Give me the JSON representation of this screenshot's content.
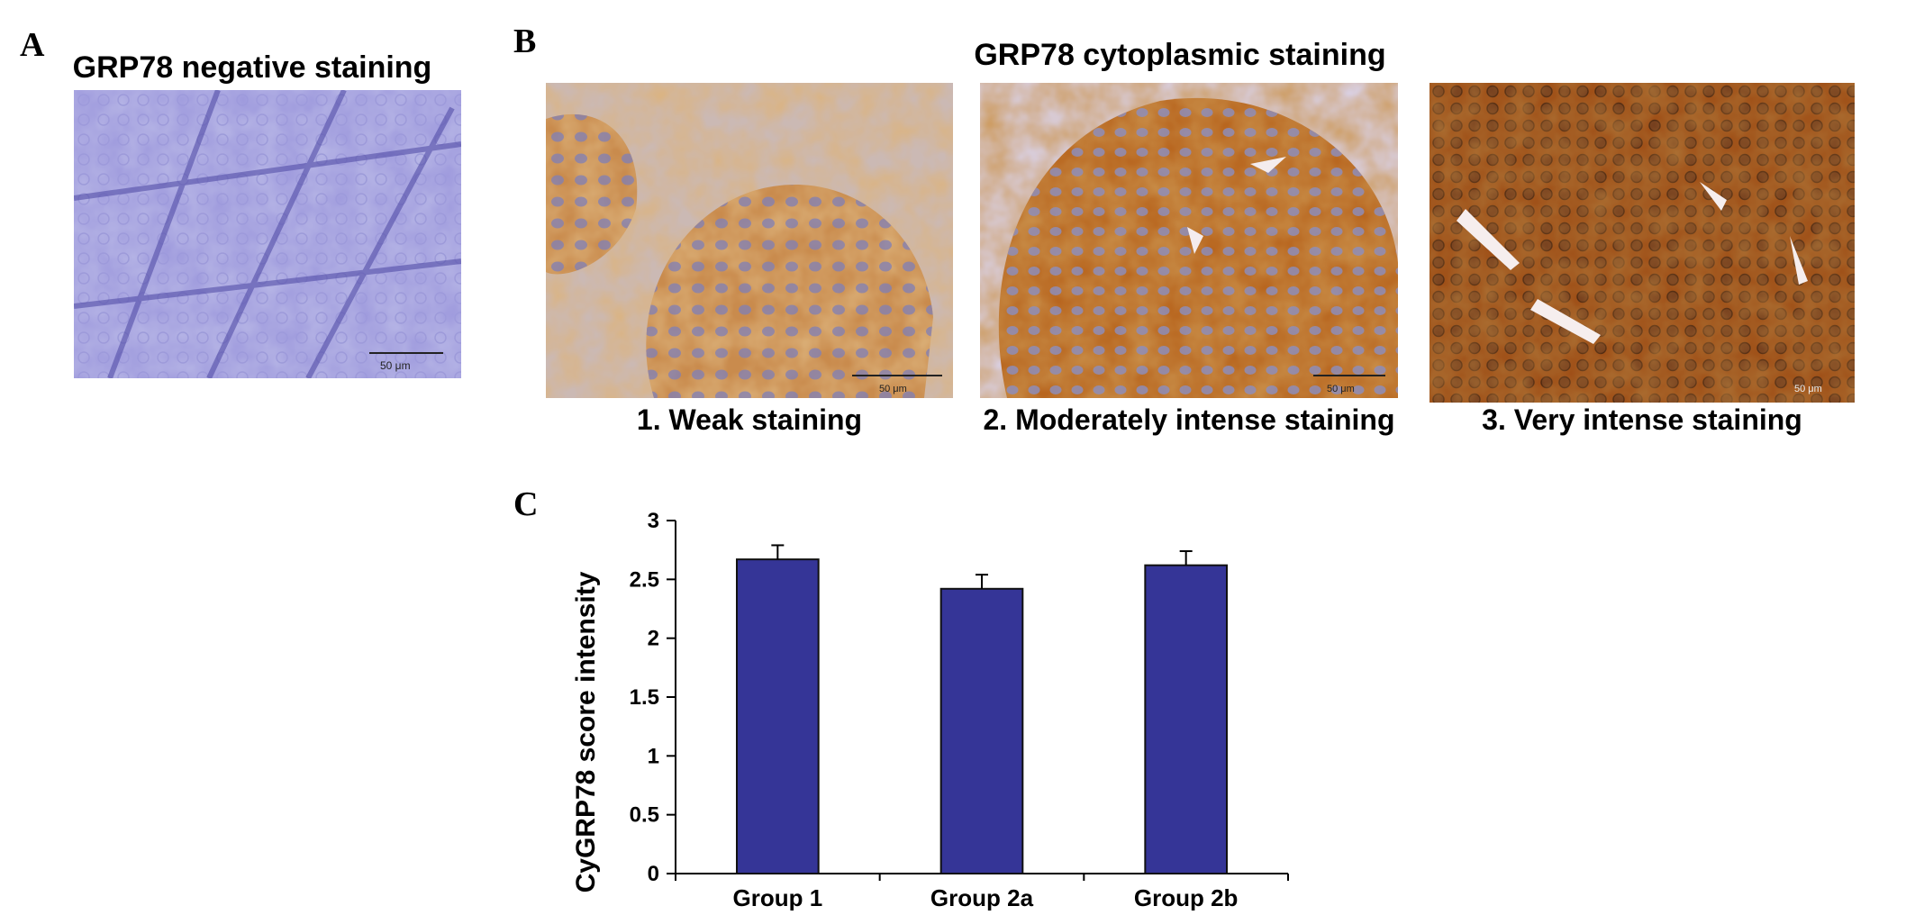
{
  "panels": {
    "a": {
      "letter": "A",
      "title": "GRP78 negative staining",
      "scale_bar": "50 μm"
    },
    "b": {
      "letter": "B",
      "title": "GRP78 cytoplasmic staining",
      "images": [
        {
          "caption": "1. Weak staining",
          "scale_bar": "50 μm"
        },
        {
          "caption": "2. Moderately intense staining",
          "scale_bar": "50 μm"
        },
        {
          "caption": "3. Very intense staining",
          "scale_bar": "50 μm"
        }
      ]
    },
    "c": {
      "letter": "C"
    }
  },
  "colors": {
    "hematoxylin": "#5b57b5",
    "dab_brown": "#9a4a14",
    "bar_fill": "#353597"
  },
  "chart_data": {
    "type": "bar",
    "categories": [
      "Group 1",
      "Group 2a",
      "Group 2b"
    ],
    "values": [
      2.67,
      2.42,
      2.62
    ],
    "errors": [
      0.12,
      0.12,
      0.12
    ],
    "ylabel": "CyGRP78 score intensity",
    "xlabel": "",
    "ylim": [
      0,
      3
    ],
    "yticks": [
      "0",
      "0.5",
      "1",
      "1.5",
      "2",
      "2.5",
      "3"
    ],
    "grid": false
  }
}
